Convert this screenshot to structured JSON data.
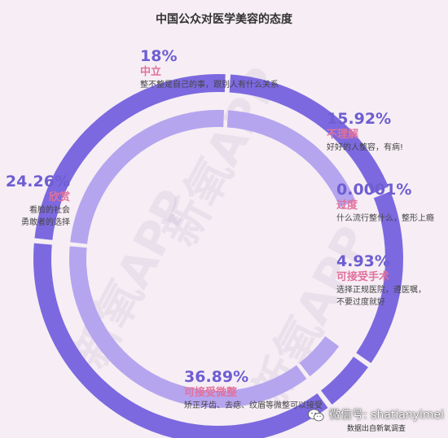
{
  "chart_data": {
    "type": "pie",
    "title": "中国公众对医学美容的态度",
    "categories": [
      "中立",
      "不理解",
      "过度",
      "可接受手术",
      "可接受微整",
      "欣赏"
    ],
    "values": [
      18,
      15.92,
      0.0001,
      4.93,
      36.89,
      24.26
    ],
    "percent_labels": [
      "18%",
      "15.92%",
      "0.0001%",
      "4.93%",
      "36.89%",
      "24.26%"
    ],
    "descriptions": [
      [
        "整不整是自己的事，跟别人有什么关系"
      ],
      [
        "好好的人整容，有病!"
      ],
      [
        "什么流行整什么，整形上瘾"
      ],
      [
        "选择正规医院，遵医嘱，",
        "不要过度就好"
      ],
      [
        "矫正牙齿、去痣、纹眉等微整可以接受"
      ],
      [
        "看脸的社会",
        "勇敢者的选择"
      ]
    ],
    "inner_ring_segments": [
      "可接受手术",
      "可接受微整"
    ],
    "colors": {
      "outer_ring": "#7c69df",
      "inner_ring": "#b5a5ef",
      "percent_text": "#6e5ed1",
      "category_text": "#e1719d",
      "background": "#f6eef4"
    }
  },
  "watermark": "新氧APP",
  "footer": {
    "wechat_label": "微信号: shatianyimei",
    "source": "数据出自新氧调查",
    "icon": "wechat-icon"
  }
}
